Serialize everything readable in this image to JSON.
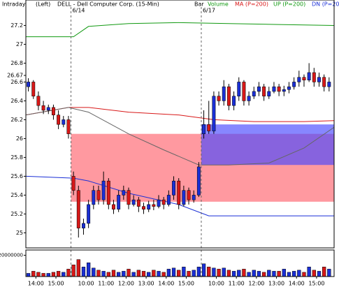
{
  "header": [
    "Intraday",
    "(Left)",
    "DELL - Dell Computer Corp. (15-Min)"
  ],
  "legend_labels": [
    "Bar",
    "Volume"
  ],
  "chart_data": [
    {
      "type": "candlestick",
      "up_color": "#1a2fd6",
      "down_color": "#d81818",
      "xlim": [
        -0.5,
        61
      ],
      "ylim": [
        24.84,
        27.47
      ],
      "yticks": [
        27.2,
        27,
        26.8,
        26.67,
        26.6,
        26.4,
        26.2,
        26,
        25.8,
        25.6,
        25.4,
        25.2,
        25
      ],
      "day_labels": [
        {
          "x": 8.5,
          "label": "6/14"
        },
        {
          "x": 34.5,
          "label": "6/17"
        }
      ],
      "zones": [
        {
          "x": [
            8.5,
            61
          ],
          "y": [
            25.33,
            26.05
          ],
          "color": "rgba(255,110,120,0.7)"
        },
        {
          "x": [
            34.5,
            61
          ],
          "y": [
            25.72,
            26.15
          ],
          "color": "rgba(70,70,255,0.65)"
        }
      ],
      "open": [
        26.55,
        26.6,
        26.45,
        26.35,
        26.3,
        26.33,
        26.25,
        26.15,
        26.2,
        25.6,
        25.45,
        25.05,
        25.1,
        25.3,
        25.45,
        25.35,
        25.55,
        25.3,
        25.25,
        25.4,
        25.45,
        25.3,
        25.35,
        25.28,
        25.25,
        25.3,
        25.28,
        25.35,
        25.3,
        25.4,
        25.55,
        25.3,
        25.45,
        25.35,
        25.4,
        26.05,
        26.15,
        26.08,
        26.45,
        26.4,
        26.55,
        26.35,
        26.45,
        26.6,
        26.4,
        26.45,
        26.5,
        26.55,
        26.45,
        26.5,
        26.55,
        26.5,
        26.52,
        26.55,
        26.6,
        26.65,
        26.62,
        26.7,
        26.6,
        26.65,
        26.55
      ],
      "high": [
        26.64,
        26.62,
        26.5,
        26.4,
        26.36,
        26.36,
        26.3,
        26.24,
        26.24,
        25.65,
        25.5,
        25.15,
        25.35,
        25.5,
        25.5,
        25.65,
        25.58,
        25.35,
        25.45,
        25.5,
        25.48,
        25.4,
        25.38,
        25.32,
        25.34,
        25.35,
        25.4,
        25.38,
        25.45,
        25.6,
        25.58,
        25.5,
        25.48,
        25.45,
        25.75,
        26.3,
        26.4,
        26.5,
        26.5,
        26.62,
        26.58,
        26.5,
        26.65,
        26.62,
        26.5,
        26.55,
        26.6,
        26.58,
        26.55,
        26.6,
        26.58,
        26.56,
        26.6,
        26.65,
        26.72,
        26.68,
        26.8,
        26.75,
        26.7,
        26.68,
        26.65
      ],
      "low": [
        26.5,
        26.42,
        26.3,
        26.26,
        26.26,
        26.2,
        26.1,
        26.12,
        26.0,
        25.4,
        24.95,
        24.98,
        25.05,
        25.25,
        25.3,
        25.3,
        25.25,
        25.2,
        25.22,
        25.35,
        25.25,
        25.28,
        25.22,
        25.2,
        25.22,
        25.24,
        25.26,
        25.25,
        25.28,
        25.35,
        25.25,
        25.28,
        25.3,
        25.32,
        25.38,
        26.0,
        26.05,
        26.05,
        26.35,
        26.35,
        26.3,
        26.3,
        26.4,
        26.35,
        26.35,
        26.42,
        26.45,
        26.4,
        26.42,
        26.48,
        26.45,
        26.45,
        26.48,
        26.52,
        26.55,
        26.55,
        26.6,
        26.55,
        26.55,
        26.5,
        26.5
      ],
      "close": [
        26.6,
        26.45,
        26.35,
        26.3,
        26.33,
        26.25,
        26.15,
        26.2,
        26.05,
        25.45,
        25.05,
        25.1,
        25.3,
        25.45,
        25.35,
        25.55,
        25.3,
        25.25,
        25.4,
        25.45,
        25.3,
        25.35,
        25.28,
        25.25,
        25.3,
        25.28,
        25.35,
        25.3,
        25.4,
        25.55,
        25.3,
        25.45,
        25.35,
        25.4,
        25.7,
        26.15,
        26.08,
        26.45,
        26.4,
        26.55,
        26.35,
        26.45,
        26.6,
        26.4,
        26.45,
        26.5,
        26.55,
        26.45,
        26.5,
        26.55,
        26.5,
        26.52,
        26.55,
        26.6,
        26.65,
        26.62,
        26.7,
        26.6,
        26.65,
        26.55,
        26.6
      ],
      "series": [
        {
          "name": "MA (P=200)",
          "color": "#d81818",
          "x": [
            -0.5,
            8,
            12,
            20,
            30,
            37,
            45,
            55,
            61
          ],
          "values": [
            26.25,
            26.33,
            26.33,
            26.28,
            26.25,
            26.2,
            26.18,
            26.18,
            26.19
          ]
        },
        {
          "name": "UP (P=200)",
          "color": "#119911",
          "x": [
            -0.5,
            9,
            12,
            20,
            30,
            40,
            50,
            61
          ],
          "values": [
            27.08,
            27.08,
            27.19,
            27.22,
            27.23,
            27.22,
            27.21,
            27.2
          ]
        },
        {
          "name": "DN (P=200)",
          "color": "#1a2fd6",
          "x": [
            -0.5,
            9,
            12,
            20,
            30,
            36,
            45,
            61
          ],
          "values": [
            25.6,
            25.58,
            25.55,
            25.42,
            25.3,
            25.18,
            25.18,
            25.18
          ]
        },
        {
          "color": "#666666",
          "x": [
            -0.5,
            8,
            12,
            20,
            27,
            34,
            40,
            48,
            55,
            61
          ],
          "values": [
            26.25,
            26.33,
            26.28,
            26.05,
            25.88,
            25.72,
            25.72,
            25.74,
            25.9,
            26.12
          ]
        }
      ]
    },
    {
      "type": "bar",
      "xlim": [
        -0.5,
        61
      ],
      "ylim": [
        0,
        25000000
      ],
      "yticks": [
        20000000
      ],
      "values": [
        3000000,
        5000000,
        4000000,
        3000000,
        3000000,
        4000000,
        5000000,
        4000000,
        7000000,
        11000000,
        16000000,
        9000000,
        13000000,
        8000000,
        6000000,
        5000000,
        4000000,
        6000000,
        4000000,
        5000000,
        7000000,
        4000000,
        6000000,
        5000000,
        4000000,
        6000000,
        5000000,
        4000000,
        7000000,
        8000000,
        6000000,
        9000000,
        5000000,
        6000000,
        9000000,
        12000000,
        9000000,
        8000000,
        7000000,
        8000000,
        6000000,
        5000000,
        6000000,
        7000000,
        4000000,
        6000000,
        5000000,
        4000000,
        6000000,
        5000000,
        5000000,
        7000000,
        4000000,
        5000000,
        6000000,
        4000000,
        9000000,
        6000000,
        5000000,
        9000000,
        7000000
      ],
      "xticks": [
        {
          "value": 1.5,
          "label": "14:00"
        },
        {
          "value": 5.5,
          "label": "15:00"
        },
        {
          "value": 11.5,
          "label": "10:00"
        },
        {
          "value": 15.5,
          "label": "11:00"
        },
        {
          "value": 19.5,
          "label": "12:00"
        },
        {
          "value": 23.5,
          "label": "13:00"
        },
        {
          "value": 27.5,
          "label": "14:00"
        },
        {
          "value": 31.5,
          "label": "15:00"
        },
        {
          "value": 37.5,
          "label": "10:00"
        },
        {
          "value": 41.5,
          "label": "11:00"
        },
        {
          "value": 45.5,
          "label": "12:00"
        },
        {
          "value": 49.5,
          "label": "13:00"
        },
        {
          "value": 53.5,
          "label": "14:00"
        },
        {
          "value": 57.5,
          "label": "15:00"
        }
      ]
    }
  ]
}
